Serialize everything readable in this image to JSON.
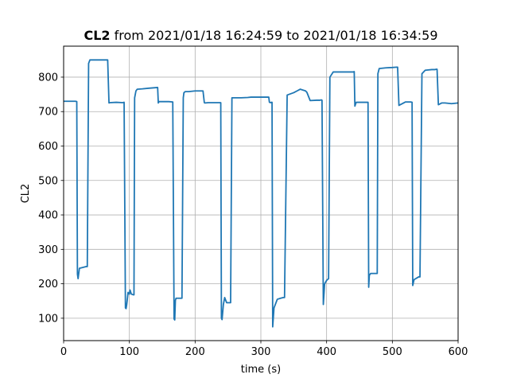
{
  "chart_data": {
    "type": "line",
    "title_bold": "CL2",
    "title_rest": " from 2021/01/18 16:24:59 to 2021/01/18 16:34:59",
    "xlabel": "time (s)",
    "ylabel": "CL2",
    "xlim": [
      0,
      600
    ],
    "ylim": [
      35,
      890
    ],
    "xticks": [
      0,
      100,
      200,
      300,
      400,
      500,
      600
    ],
    "yticks": [
      100,
      200,
      300,
      400,
      500,
      600,
      700,
      800
    ],
    "grid": true,
    "line_color": "#1f77b4",
    "series": [
      {
        "x": [
          0,
          18,
          20,
          21,
          22,
          24,
          30,
          34,
          36,
          38,
          40,
          50,
          60,
          67,
          69,
          70,
          80,
          90,
          92,
          94,
          95,
          96,
          98,
          100,
          101,
          103,
          106,
          107,
          108,
          110,
          112,
          120,
          130,
          143,
          144,
          145,
          150,
          160,
          166,
          168,
          169,
          170,
          171,
          173,
          180,
          182,
          183,
          185,
          190,
          200,
          212,
          214,
          215,
          220,
          230,
          239,
          240,
          241,
          243,
          245,
          248,
          252,
          254,
          256,
          270,
          280,
          285,
          300,
          312,
          313,
          315,
          316,
          317,
          318,
          320,
          325,
          330,
          334,
          336,
          340,
          350,
          355,
          360,
          368,
          370,
          375,
          385,
          390,
          392,
          393,
          395,
          397,
          400,
          403,
          405,
          410,
          420,
          440,
          442,
          443,
          445,
          450,
          460,
          463,
          464,
          465,
          467,
          475,
          477,
          478,
          480,
          490,
          500,
          507,
          508,
          510,
          520,
          528,
          530,
          531,
          533,
          540,
          542,
          545,
          550,
          560,
          565,
          567,
          568,
          570,
          575,
          580,
          590,
          600
        ],
        "y": [
          730,
          730,
          729,
          228,
          215,
          245,
          248,
          250,
          250,
          840,
          850,
          850,
          850,
          850,
          725,
          726,
          727,
          726,
          727,
          130,
          128,
          140,
          175,
          170,
          182,
          170,
          168,
          168,
          740,
          760,
          765,
          766,
          768,
          770,
          725,
          729,
          729,
          729,
          728,
          98,
          95,
          152,
          158,
          158,
          158,
          740,
          755,
          758,
          758,
          760,
          760,
          726,
          725,
          726,
          726,
          726,
          100,
          96,
          140,
          160,
          145,
          145,
          145,
          740,
          740,
          741,
          742,
          742,
          742,
          727,
          726,
          727,
          727,
          75,
          130,
          155,
          158,
          160,
          160,
          748,
          755,
          760,
          765,
          760,
          756,
          732,
          733,
          733,
          734,
          733,
          140,
          200,
          210,
          215,
          800,
          815,
          815,
          815,
          816,
          716,
          727,
          727,
          727,
          727,
          190,
          225,
          230,
          230,
          230,
          810,
          825,
          827,
          828,
          829,
          829,
          718,
          728,
          728,
          727,
          195,
          212,
          220,
          220,
          810,
          820,
          822,
          822,
          823,
          823,
          720,
          725,
          725,
          723,
          725
        ]
      }
    ]
  }
}
